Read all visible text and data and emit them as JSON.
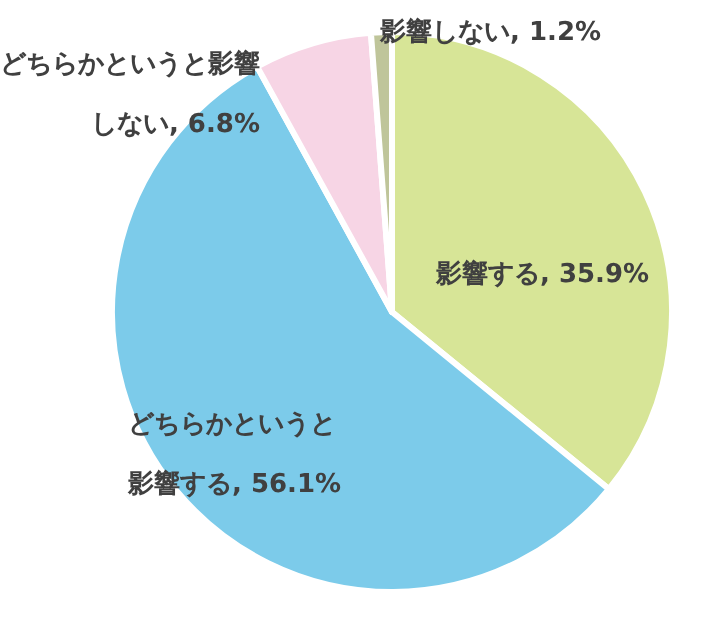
{
  "chart_data": {
    "type": "pie",
    "categories": [
      "影響する",
      "どちらかというと影響する",
      "どちらかというと影響しない",
      "影響しない"
    ],
    "values": [
      35.9,
      56.1,
      6.8,
      1.2
    ],
    "colors": [
      "#d7e597",
      "#7ccbea",
      "#f7d5e5",
      "#bfc59a"
    ],
    "value_labels": [
      ", 35.9%",
      ", 56.1%",
      ", 6.8%",
      ", 1.2%"
    ],
    "legend": false
  }
}
